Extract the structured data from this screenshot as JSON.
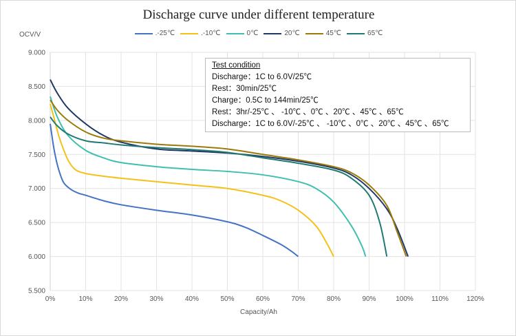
{
  "chart_data": {
    "type": "line",
    "title": "Discharge curve under different temperature",
    "xlabel": "Capacity/Ah",
    "ylabel": "OCV/V",
    "xlim": [
      0,
      120
    ],
    "ylim": [
      5.5,
      9.0
    ],
    "x_ticks": [
      "0%",
      "10%",
      "20%",
      "30%",
      "40%",
      "50%",
      "60%",
      "70%",
      "80%",
      "90%",
      "100%",
      "110%",
      "120%"
    ],
    "y_ticks": [
      "5.500",
      "6.000",
      "6.500",
      "7.000",
      "7.500",
      "8.000",
      "8.500",
      "9.000"
    ],
    "grid": true,
    "legend_position": "top",
    "series": [
      {
        "name": ".-25℃",
        "color": "#4472c4",
        "x": [
          0,
          1,
          2,
          3,
          4,
          6,
          8,
          10,
          15,
          20,
          30,
          40,
          50,
          55,
          60,
          65,
          68,
          70
        ],
        "y": [
          7.95,
          7.6,
          7.35,
          7.18,
          7.07,
          6.98,
          6.93,
          6.9,
          6.82,
          6.76,
          6.68,
          6.61,
          6.51,
          6.43,
          6.31,
          6.18,
          6.08,
          6.0
        ]
      },
      {
        "name": ".-10℃",
        "color": "#f5c018",
        "x": [
          0,
          1,
          2,
          3,
          5,
          7,
          10,
          15,
          20,
          30,
          40,
          50,
          60,
          65,
          70,
          75,
          78,
          80
        ],
        "y": [
          8.24,
          8.05,
          7.85,
          7.68,
          7.42,
          7.28,
          7.22,
          7.18,
          7.15,
          7.1,
          7.05,
          7.0,
          6.9,
          6.82,
          6.68,
          6.45,
          6.2,
          6.0
        ]
      },
      {
        "name": "0℃",
        "color": "#3fbfae",
        "x": [
          0,
          2,
          5,
          10,
          15,
          20,
          30,
          40,
          50,
          60,
          70,
          75,
          80,
          85,
          88,
          89
        ],
        "y": [
          8.35,
          8.05,
          7.78,
          7.56,
          7.45,
          7.38,
          7.32,
          7.28,
          7.25,
          7.2,
          7.1,
          7.0,
          6.8,
          6.45,
          6.15,
          6.0
        ]
      },
      {
        "name": "20℃",
        "color": "#203864",
        "x": [
          0,
          2,
          5,
          10,
          15,
          20,
          30,
          40,
          50,
          60,
          70,
          80,
          85,
          90,
          95,
          98,
          101
        ],
        "y": [
          8.6,
          8.4,
          8.18,
          7.95,
          7.78,
          7.68,
          7.58,
          7.55,
          7.52,
          7.47,
          7.4,
          7.3,
          7.2,
          7.0,
          6.7,
          6.4,
          6.0
        ]
      },
      {
        "name": "45℃",
        "color": "#9c7a0a",
        "x": [
          0,
          2,
          5,
          10,
          15,
          20,
          30,
          40,
          50,
          60,
          70,
          80,
          85,
          90,
          95,
          98,
          100.5
        ],
        "y": [
          8.3,
          8.15,
          8.0,
          7.83,
          7.74,
          7.7,
          7.65,
          7.62,
          7.58,
          7.5,
          7.42,
          7.32,
          7.23,
          7.05,
          6.75,
          6.35,
          6.0
        ]
      },
      {
        "name": "65℃",
        "color": "#1f7a73",
        "x": [
          0,
          2,
          5,
          10,
          15,
          20,
          30,
          40,
          50,
          60,
          70,
          80,
          85,
          90,
          93,
          95
        ],
        "y": [
          8.05,
          7.92,
          7.8,
          7.7,
          7.67,
          7.64,
          7.6,
          7.57,
          7.53,
          7.45,
          7.37,
          7.27,
          7.15,
          6.9,
          6.5,
          6.0
        ]
      }
    ]
  },
  "test_condition": {
    "heading": "Test condition",
    "lines": [
      "Discharge：1C to 6.0V/25℃",
      "Rest：30min/25℃",
      "Charge：0.5C to 144min/25℃",
      "Rest：3hr/-25℃ 、 -10℃ 、0℃ 、20℃ 、45℃ 、65℃",
      "Discharge：1C to 6.0V/-25℃ 、 -10℃ 、0℃ 、20℃ 、45℃ 、65℃"
    ]
  }
}
